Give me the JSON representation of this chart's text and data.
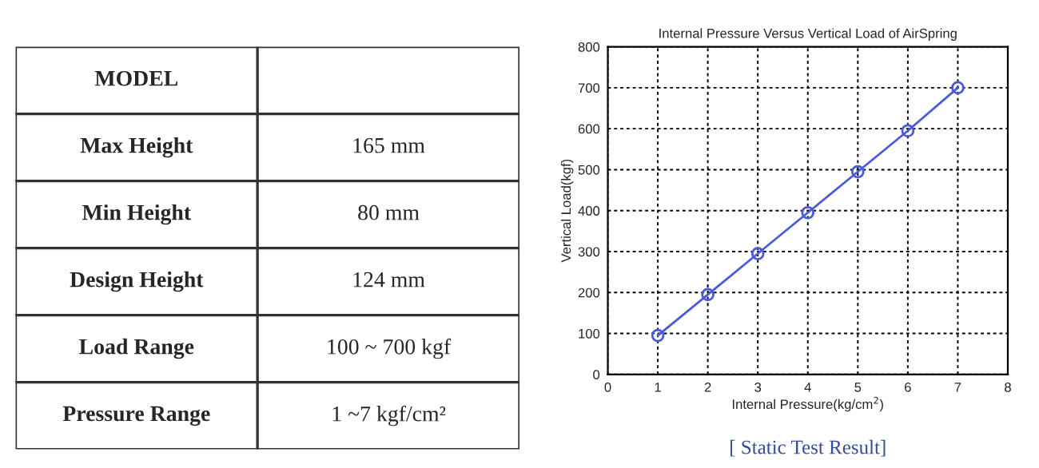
{
  "chart_data": [
    {
      "type": "other",
      "annotations": [
        "MODEL",
        "Max Height",
        "165 mm",
        "Min Height",
        "80 mm",
        "Design Height",
        "124 mm",
        "Load Range",
        "100 ~ 700 kgf",
        "Pressure Range",
        "1 ~7 kgf/cm²"
      ]
    },
    {
      "type": "line",
      "title": "Internal Pressure Versus Vertical Load of AirSpring",
      "xlabel": "Internal Pressure(kg/cm$^{2}$)",
      "ylabel": "Vertical Load(kgf)",
      "x": [
        1,
        2,
        3,
        4,
        5,
        6,
        7
      ],
      "series": [
        {
          "color": "#4a5ad8",
          "values": [
            95,
            195,
            295,
            395,
            495,
            595,
            700
          ]
        }
      ],
      "xlim": [
        0,
        8
      ],
      "xticks": [
        0,
        1,
        2,
        3,
        4,
        5,
        6,
        7,
        8
      ],
      "ylim": [
        0,
        800
      ],
      "yticks": [
        0,
        100,
        200,
        300,
        400,
        500,
        600,
        700,
        800
      ],
      "grid": true,
      "marker": "circle",
      "line_style": "solid",
      "annotations": [
        "[ Static Test Result]"
      ]
    }
  ]
}
